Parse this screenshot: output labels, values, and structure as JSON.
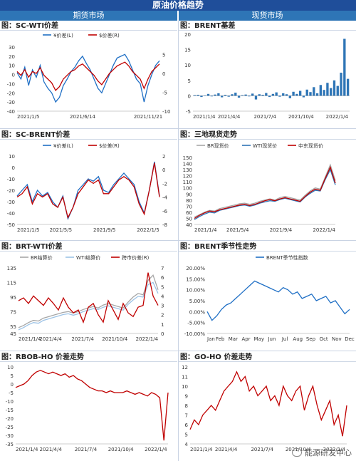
{
  "page": {
    "title": "原油价格趋势"
  },
  "columns": {
    "left": "期货市场",
    "right": "现货市场"
  },
  "watermark": "能源研发中心",
  "panels": {
    "p1": {
      "title": "图：SC-WTI价差"
    },
    "p2": {
      "title": "图：BRENT基差"
    },
    "p3": {
      "title": "图：SC-BRENT价差"
    },
    "p4": {
      "title": "图：三地现货走势"
    },
    "p5": {
      "title": "图：BRT-WTI价差"
    },
    "p6": {
      "title": "图：BRENT季节性走势"
    },
    "p7": {
      "title": "图：RBOB-HO 价差走势"
    },
    "p8": {
      "title": "图：GO-HO 价差走势"
    }
  },
  "chart_data": [
    {
      "id": "p1",
      "type": "line",
      "x_ticks": [
        "2021/1/5",
        "2021/6/14",
        "2021/11/21"
      ],
      "y_ticks_left": [
        "30",
        "20",
        "10",
        "0",
        "-10",
        "-20",
        "-30",
        "-40"
      ],
      "ylim_left": [
        -40,
        30
      ],
      "y_ticks_right": [
        "5",
        "0",
        "-5",
        "-10"
      ],
      "ylim_right": [
        -10,
        7
      ],
      "legend": [
        "¥价差(L)",
        "$价差(R)"
      ],
      "colors": [
        "#1f6fc5",
        "#c00000"
      ],
      "series": [
        {
          "name": "¥价差(L)",
          "values": [
            2,
            -5,
            8,
            -12,
            5,
            -3,
            10,
            -8,
            -15,
            -20,
            -30,
            -25,
            -12,
            -5,
            3,
            8,
            15,
            20,
            12,
            5,
            -5,
            -15,
            -20,
            -10,
            0,
            10,
            18,
            20,
            22,
            15,
            5,
            -5,
            -10,
            -30,
            -12,
            0,
            10,
            15
          ]
        },
        {
          "name": "$价差(R)",
          "values": [
            0.5,
            -0.5,
            1,
            -1,
            0.5,
            0,
            1.5,
            -0.5,
            -1.5,
            -2.5,
            -4.5,
            -3.5,
            -1.5,
            -0.5,
            0.5,
            1,
            2,
            2.5,
            1.5,
            0.5,
            -0.5,
            -2,
            -3,
            -1.5,
            0,
            1,
            2,
            2.5,
            3,
            2,
            0.5,
            -0.5,
            -1.5,
            -4,
            -1.5,
            0.5,
            1.5,
            2.5
          ]
        }
      ]
    },
    {
      "id": "p2",
      "type": "bar",
      "x_ticks": [
        "2021/1/4",
        "2021/4/4",
        "2021/7/4",
        "2021/10/4",
        "2022/1/4"
      ],
      "y_ticks": [
        "20",
        "15",
        "10",
        "5",
        "0",
        "-5"
      ],
      "ylim": [
        -5,
        20
      ],
      "colors": [
        "#2e75b6"
      ],
      "series": [
        {
          "name": "",
          "values": [
            0.2,
            0.3,
            -0.4,
            0.1,
            0.6,
            -0.2,
            0.4,
            0.8,
            -0.5,
            0.3,
            -0.3,
            0.5,
            1.0,
            -0.6,
            0.2,
            0.4,
            -0.2,
            0.7,
            -1.2,
            0.5,
            0.3,
            0.9,
            -0.4,
            0.6,
            1.1,
            -0.3,
            0.8,
            0.5,
            -0.8,
            1.3,
            0.6,
            1.6,
            -0.5,
            2.0,
            1.2,
            2.8,
            0.8,
            3.5,
            1.9,
            4.2,
            2.5,
            5.0,
            3.2,
            7.5,
            18.5,
            5.5
          ]
        }
      ]
    },
    {
      "id": "p3",
      "type": "line",
      "x_ticks": [
        "2021/1/5",
        "2021/5/5",
        "2021/9/5",
        "2022/1/5"
      ],
      "y_ticks_left": [
        "10",
        "0",
        "-10",
        "-20",
        "-30",
        "-40",
        "-50"
      ],
      "ylim_left": [
        -50,
        10
      ],
      "y_ticks_right": [
        "2",
        "0",
        "-2",
        "-4",
        "-6",
        "-8"
      ],
      "ylim_right": [
        -8,
        2
      ],
      "legend": [
        "¥价差(L)",
        "$价差(R)"
      ],
      "colors": [
        "#1f6fc5",
        "#c00000"
      ],
      "series": [
        {
          "name": "¥价差(L)",
          "values": [
            -25,
            -20,
            -15,
            -30,
            -20,
            -25,
            -22,
            -30,
            -35,
            -25,
            -45,
            -35,
            -20,
            -15,
            -10,
            -12,
            -8,
            -20,
            -22,
            -15,
            -10,
            -5,
            -10,
            -15,
            -30,
            -40,
            -20,
            5,
            -25
          ]
        },
        {
          "name": "$价差(R)",
          "values": [
            -4,
            -3.5,
            -2.5,
            -5,
            -3.5,
            -4,
            -3.5,
            -5,
            -5.5,
            -4,
            -7,
            -5.5,
            -3.5,
            -2.5,
            -1.5,
            -2,
            -1.5,
            -3.5,
            -3.5,
            -2.5,
            -1.5,
            -1,
            -1.5,
            -2.5,
            -5,
            -6.5,
            -3,
            1,
            -4
          ]
        }
      ]
    },
    {
      "id": "p4",
      "type": "line",
      "x_ticks": [
        "2021/1/4",
        "2021/5/4",
        "2021/9/4",
        "2022/1/4"
      ],
      "y_ticks": [
        "150",
        "140",
        "130",
        "120",
        "110",
        "100",
        "90",
        "80",
        "70",
        "60",
        "50",
        "40"
      ],
      "ylim": [
        40,
        150
      ],
      "legend": [
        "BR现货价",
        "WTI现货价",
        "中东现货价"
      ],
      "colors": [
        "#a6a6a6",
        "#2e75b6",
        "#c00000"
      ],
      "series": [
        {
          "name": "BR现货价",
          "values": [
            52,
            56,
            60,
            63,
            62,
            66,
            68,
            70,
            72,
            74,
            75,
            73,
            75,
            78,
            80,
            82,
            80,
            84,
            86,
            84,
            82,
            80,
            88,
            95,
            100,
            98,
            118,
            138,
            112
          ]
        },
        {
          "name": "WTI现货价",
          "values": [
            48,
            53,
            57,
            60,
            59,
            63,
            65,
            67,
            69,
            71,
            72,
            70,
            72,
            75,
            77,
            79,
            78,
            81,
            83,
            81,
            79,
            77,
            85,
            91,
            96,
            95,
            114,
            130,
            105
          ]
        },
        {
          "name": "中东现货价",
          "values": [
            50,
            55,
            59,
            62,
            61,
            64,
            66,
            68,
            70,
            72,
            73,
            71,
            73,
            76,
            79,
            81,
            79,
            82,
            84,
            82,
            80,
            78,
            86,
            93,
            98,
            96,
            116,
            134,
            108
          ]
        }
      ]
    },
    {
      "id": "p5",
      "type": "line",
      "x_ticks": [
        "2021/1/4",
        "2021/4/4",
        "2021/7/4",
        "2021/10/4",
        "2022/1/4"
      ],
      "y_ticks_left": [
        "135",
        "115",
        "95",
        "75",
        "55",
        "45"
      ],
      "ylim_left": [
        45,
        135
      ],
      "y_ticks_right": [
        "7",
        "6",
        "5",
        "4",
        "3",
        "2",
        "1",
        "0"
      ],
      "ylim_right": [
        0,
        7
      ],
      "legend": [
        "BR结算价",
        "WTI结算价",
        "跨市价差(R)"
      ],
      "colors": [
        "#a6a6a6",
        "#9dc3e6",
        "#c00000"
      ],
      "series": [
        {
          "name": "BR结算价",
          "values": [
            53,
            56,
            60,
            63,
            62,
            66,
            68,
            70,
            72,
            74,
            75,
            73,
            75,
            78,
            80,
            82,
            80,
            84,
            86,
            84,
            82,
            80,
            88,
            95,
            100,
            98,
            118,
            125,
            105
          ]
        },
        {
          "name": "WTI结算价",
          "values": [
            50,
            53,
            57,
            60,
            59,
            63,
            65,
            67,
            69,
            71,
            72,
            70,
            72,
            75,
            77,
            79,
            78,
            81,
            83,
            81,
            79,
            77,
            85,
            91,
            96,
            95,
            112,
            115,
            100
          ]
        },
        {
          "name": "跨市价差(R)",
          "values": [
            3.5,
            3.8,
            3.2,
            4,
            3.5,
            3,
            3.8,
            3.2,
            2.5,
            3.8,
            2.8,
            2.2,
            2.5,
            1.2,
            2.8,
            3.2,
            2,
            1.2,
            3.5,
            2.5,
            1.5,
            3.2,
            2.2,
            1.8,
            2.8,
            3,
            6.5,
            4,
            3
          ]
        }
      ]
    },
    {
      "id": "p6",
      "type": "line",
      "x_ticks": [
        "Jan",
        "Feb",
        "Mar",
        "Apr",
        "May",
        "Jun",
        "Jul",
        "Aug",
        "Sep",
        "Oct",
        "Nov",
        "Dec"
      ],
      "y_ticks": [
        "20.00%",
        "15.00%",
        "10.00%",
        "5.00%",
        "0.00%",
        "-5.00%",
        "-10.00%"
      ],
      "ylim": [
        -10,
        20
      ],
      "legend": [
        "BRENT季节性指数"
      ],
      "colors": [
        "#1f6fc5"
      ],
      "series": [
        {
          "name": "BRENT季节性指数",
          "values": [
            0,
            -4,
            -2,
            1,
            3,
            4,
            6,
            8,
            10,
            12,
            14,
            13,
            12,
            11,
            10,
            9,
            11,
            10,
            8,
            9,
            6,
            7,
            8,
            5,
            6,
            7,
            4,
            5,
            2,
            -1,
            1
          ]
        }
      ]
    },
    {
      "id": "p7",
      "type": "line",
      "x_ticks": [
        "2021/1/4",
        "2021/4/4",
        "2021/7/4",
        "2021/10/4",
        "2022/1/4"
      ],
      "y_ticks": [
        "10",
        "5",
        "0",
        "-5",
        "-10",
        "-15",
        "-20",
        "-25",
        "-30",
        "-35"
      ],
      "ylim": [
        -35,
        10
      ],
      "colors": [
        "#c00000"
      ],
      "series": [
        {
          "name": "",
          "values": [
            -2,
            -1,
            0,
            2,
            5,
            7,
            8,
            7,
            6,
            7,
            6,
            5,
            6,
            4,
            5,
            3,
            2,
            0,
            -2,
            -3,
            -4,
            -4,
            -5,
            -4,
            -5,
            -5,
            -5,
            -4,
            -5,
            -6,
            -5,
            -6,
            -7,
            -5,
            -6,
            -8,
            -33,
            -5
          ]
        }
      ]
    },
    {
      "id": "p8",
      "type": "line",
      "x_ticks": [
        "2021/1/4",
        "2021/4/4",
        "2021/7/4",
        "2021/10/4",
        "2022/1/4"
      ],
      "y_ticks": [
        "12",
        "11",
        "10",
        "9",
        "8",
        "7",
        "6",
        "5",
        "4"
      ],
      "ylim": [
        4,
        12
      ],
      "colors": [
        "#c00000"
      ],
      "series": [
        {
          "name": "",
          "values": [
            5.5,
            6.5,
            6,
            7,
            7.5,
            8,
            7.5,
            8.5,
            9.5,
            10,
            10.5,
            11.5,
            10.5,
            11,
            9.5,
            10,
            9,
            9.5,
            10,
            8.5,
            9,
            8,
            10,
            9,
            8.5,
            9.5,
            10,
            7.5,
            9,
            10,
            8,
            6.5,
            7.5,
            8.5,
            6,
            7,
            4.8,
            8
          ]
        }
      ]
    }
  ]
}
